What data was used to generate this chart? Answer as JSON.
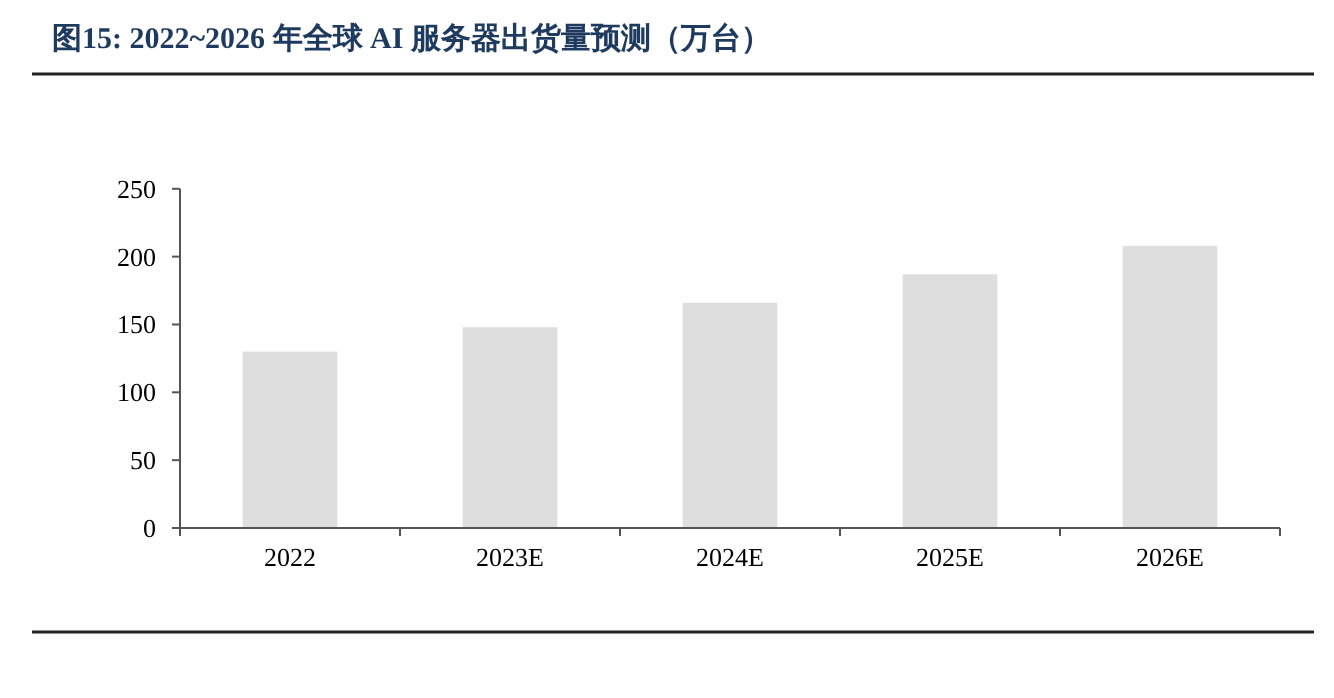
{
  "chart_data": {
    "type": "bar",
    "title": "图15:  2022~2026 年全球 AI 服务器出货量预测（万台）",
    "categories": [
      "2022",
      "2023E",
      "2024E",
      "2025E",
      "2026E"
    ],
    "values": [
      130,
      148,
      166,
      187,
      208
    ],
    "color": "#dedede",
    "ylim": [
      0,
      250
    ],
    "yticks": [
      0,
      50,
      100,
      150,
      200,
      250
    ]
  }
}
